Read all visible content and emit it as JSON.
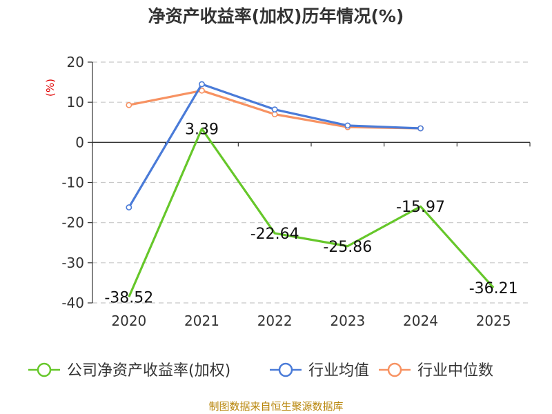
{
  "chart_data": {
    "type": "line",
    "title": "净资产收益率(加权)历年情况(%)",
    "ylabel": "(%)",
    "xlabel": "",
    "categories": [
      "2020",
      "2021",
      "2022",
      "2023",
      "2024",
      "2025"
    ],
    "y_ticks": [
      20,
      10,
      0,
      -10,
      -20,
      -30,
      -40
    ],
    "ylim": [
      -40,
      20
    ],
    "grid": true,
    "legend_position": "bottom",
    "series": [
      {
        "name": "公司净资产收益率(加权)",
        "color": "#66c72a",
        "values": [
          -38.52,
          3.39,
          -22.64,
          -25.86,
          -15.97,
          -36.21
        ],
        "labels": [
          "-38.52",
          "3.39",
          "-22.64",
          "-25.86",
          "-15.97",
          "-36.21"
        ]
      },
      {
        "name": "行业均值",
        "color": "#4a7bd8",
        "values": [
          -16.2,
          14.5,
          8.2,
          4.2,
          3.5,
          null
        ]
      },
      {
        "name": "行业中位数",
        "color": "#f79262",
        "values": [
          9.3,
          12.9,
          7.0,
          3.8,
          3.5,
          null
        ]
      }
    ]
  },
  "footer": {
    "source": "制图数据来自恒生聚源数据库"
  }
}
